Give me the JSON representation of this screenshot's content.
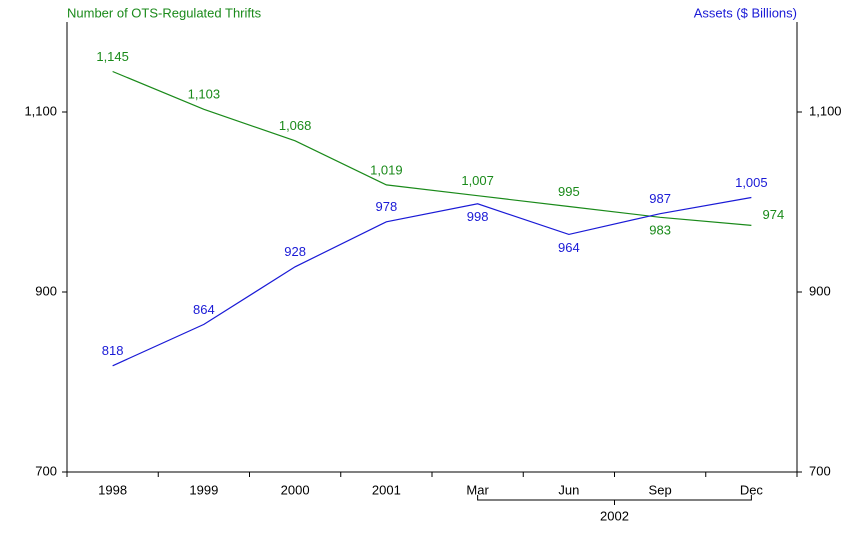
{
  "chart_data": {
    "type": "line",
    "y_label": "Number of OTS-Regulated Thrifts",
    "y2_label": "Assets ($ Billions)",
    "categories": [
      "1998",
      "1999",
      "2000",
      "2001",
      "Mar",
      "Jun",
      "Sep",
      "Dec"
    ],
    "x_group_label": "2002",
    "series": [
      {
        "name": "Number of OTS-Regulated Thrifts",
        "color": "#1a8a1a",
        "axis": "y",
        "values": [
          1145,
          1103,
          1068,
          1019,
          1007,
          995,
          983,
          974
        ],
        "value_labels": [
          "1,145",
          "1,103",
          "1,068",
          "1,019",
          "1,007",
          "995",
          "983",
          "974"
        ]
      },
      {
        "name": "Assets ($ Billions)",
        "color": "#1a1ad6",
        "axis": "y2",
        "values": [
          818,
          864,
          928,
          978,
          998,
          964,
          987,
          1005
        ],
        "value_labels": [
          "818",
          "864",
          "928",
          "978",
          "998",
          "964",
          "987",
          "1,005"
        ]
      }
    ],
    "ylim": [
      700,
      1200
    ],
    "yticks": [
      700,
      900,
      {
        "value": 1100,
        "label": "1,100"
      }
    ],
    "y2lim": [
      700,
      1200
    ],
    "y2ticks": [
      700,
      900,
      {
        "value": 1100,
        "label": "1,100"
      }
    ]
  }
}
